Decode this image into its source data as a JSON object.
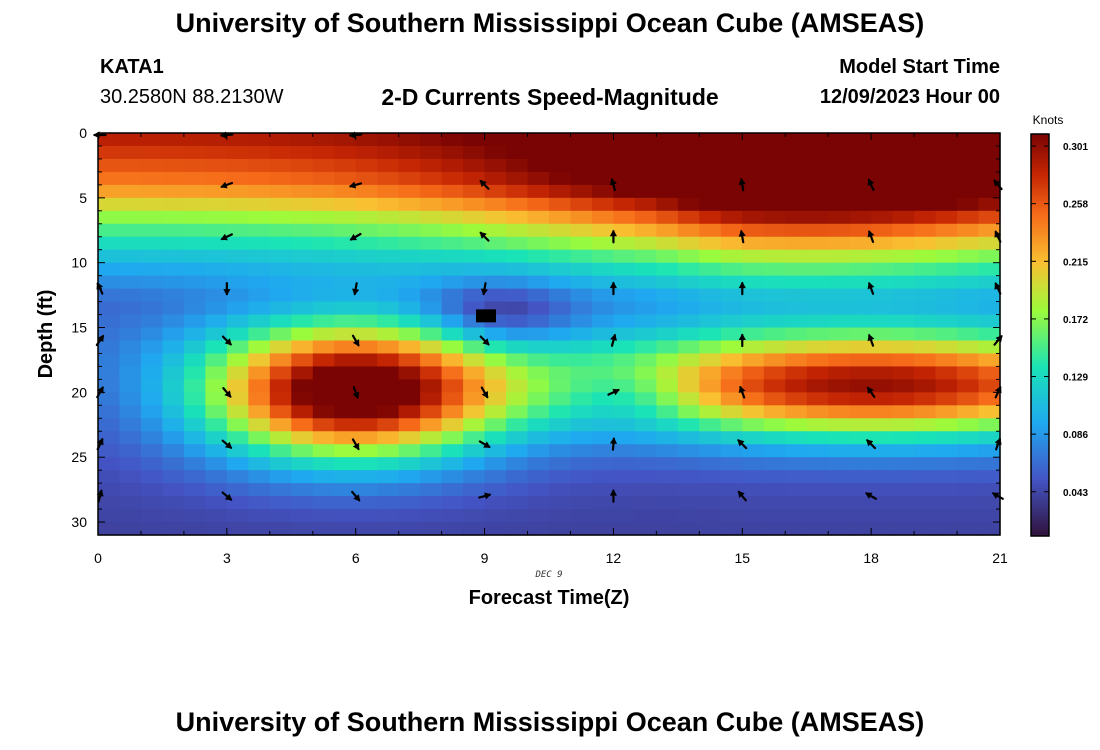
{
  "header": {
    "title": "University of Southern Mississippi Ocean Cube (AMSEAS)",
    "station_id": "KATA1",
    "station_coords": "30.2580N  88.2130W",
    "subtitle": "2-D Currents Speed-Magnitude",
    "model_start_label": "Model Start Time",
    "model_start_value": "12/09/2023 Hour 00"
  },
  "footer": {
    "title": "University of Southern Mississippi Ocean Cube (AMSEAS)"
  },
  "chart_data": {
    "type": "heatmap",
    "xlabel": "Forecast Time(Z)",
    "ylabel": "Depth (ft)",
    "date_label": "DEC 9",
    "x_ticks": [
      "0",
      "3",
      "6",
      "9",
      "12",
      "15",
      "18",
      "21"
    ],
    "y_ticks": [
      "0",
      "5",
      "10",
      "15",
      "20",
      "25",
      "30"
    ],
    "xlim": [
      0,
      21
    ],
    "ylim": [
      0,
      31
    ],
    "colorbar": {
      "label": "Knots",
      "ticks": [
        "0.301",
        "0.258",
        "0.215",
        "0.172",
        "0.129",
        "0.086",
        "0.043"
      ],
      "tick_values": [
        0.301,
        0.258,
        0.215,
        0.172,
        0.129,
        0.086,
        0.043
      ],
      "range": [
        0.01,
        0.31
      ]
    },
    "vector_times": [
      0,
      3,
      6,
      9,
      12,
      15,
      18,
      21
    ],
    "vector_depths": [
      0,
      4,
      8,
      12,
      16,
      20,
      24,
      28
    ],
    "vectors": [
      [
        [
          270,
          1
        ],
        [
          265,
          1
        ],
        [
          265,
          1
        ],
        [
          0,
          0
        ],
        [
          0,
          0
        ],
        [
          0,
          0
        ],
        [
          0,
          0
        ],
        [
          0,
          0
        ]
      ],
      [
        [
          0,
          0
        ],
        [
          250,
          1
        ],
        [
          255,
          1
        ],
        [
          315,
          1
        ],
        [
          345,
          1
        ],
        [
          350,
          1
        ],
        [
          335,
          1
        ],
        [
          320,
          1
        ]
      ],
      [
        [
          0,
          0
        ],
        [
          245,
          1
        ],
        [
          240,
          1
        ],
        [
          315,
          1
        ],
        [
          0,
          1
        ],
        [
          350,
          1
        ],
        [
          340,
          1
        ],
        [
          335,
          1
        ]
      ],
      [
        [
          335,
          1
        ],
        [
          180,
          1
        ],
        [
          190,
          1
        ],
        [
          190,
          1
        ],
        [
          0,
          1
        ],
        [
          0,
          1
        ],
        [
          340,
          1
        ],
        [
          335,
          1
        ]
      ],
      [
        [
          35,
          1
        ],
        [
          135,
          1
        ],
        [
          150,
          1
        ],
        [
          135,
          1
        ],
        [
          15,
          1
        ],
        [
          0,
          1
        ],
        [
          340,
          1
        ],
        [
          40,
          1
        ]
      ],
      [
        [
          30,
          1
        ],
        [
          140,
          1
        ],
        [
          160,
          1
        ],
        [
          150,
          1
        ],
        [
          65,
          1
        ],
        [
          340,
          1
        ],
        [
          325,
          1
        ],
        [
          25,
          1
        ]
      ],
      [
        [
          25,
          1
        ],
        [
          130,
          1
        ],
        [
          150,
          1
        ],
        [
          120,
          1
        ],
        [
          5,
          1
        ],
        [
          315,
          1
        ],
        [
          315,
          1
        ],
        [
          20,
          1
        ]
      ],
      [
        [
          15,
          1
        ],
        [
          130,
          1
        ],
        [
          140,
          1
        ],
        [
          75,
          1
        ],
        [
          0,
          1
        ],
        [
          320,
          1
        ],
        [
          300,
          1
        ],
        [
          300,
          1
        ]
      ]
    ],
    "speed_field": {
      "base_profile": [
        [
          0,
          0.29
        ],
        [
          4,
          0.24
        ],
        [
          7,
          0.16
        ],
        [
          10,
          0.1
        ],
        [
          13,
          0.06
        ],
        [
          17,
          0.06
        ],
        [
          22,
          0.05
        ],
        [
          31,
          0.04
        ]
      ],
      "features": [
        {
          "t": 5.9,
          "d": 20,
          "st": 2.4,
          "sd": 3.6,
          "amp": 0.28
        },
        {
          "t": 18,
          "d": 19.5,
          "st": 5,
          "sd": 2.8,
          "amp": 0.24
        },
        {
          "t": 16.5,
          "d": 4,
          "st": 5,
          "sd": 5,
          "amp": 0.12
        },
        {
          "t": 9.3,
          "d": 14,
          "st": 1.2,
          "sd": 1.8,
          "amp": -0.05
        },
        {
          "t": 12.4,
          "d": 20.2,
          "st": 1.2,
          "sd": 1.6,
          "amp": -0.04
        }
      ]
    }
  }
}
